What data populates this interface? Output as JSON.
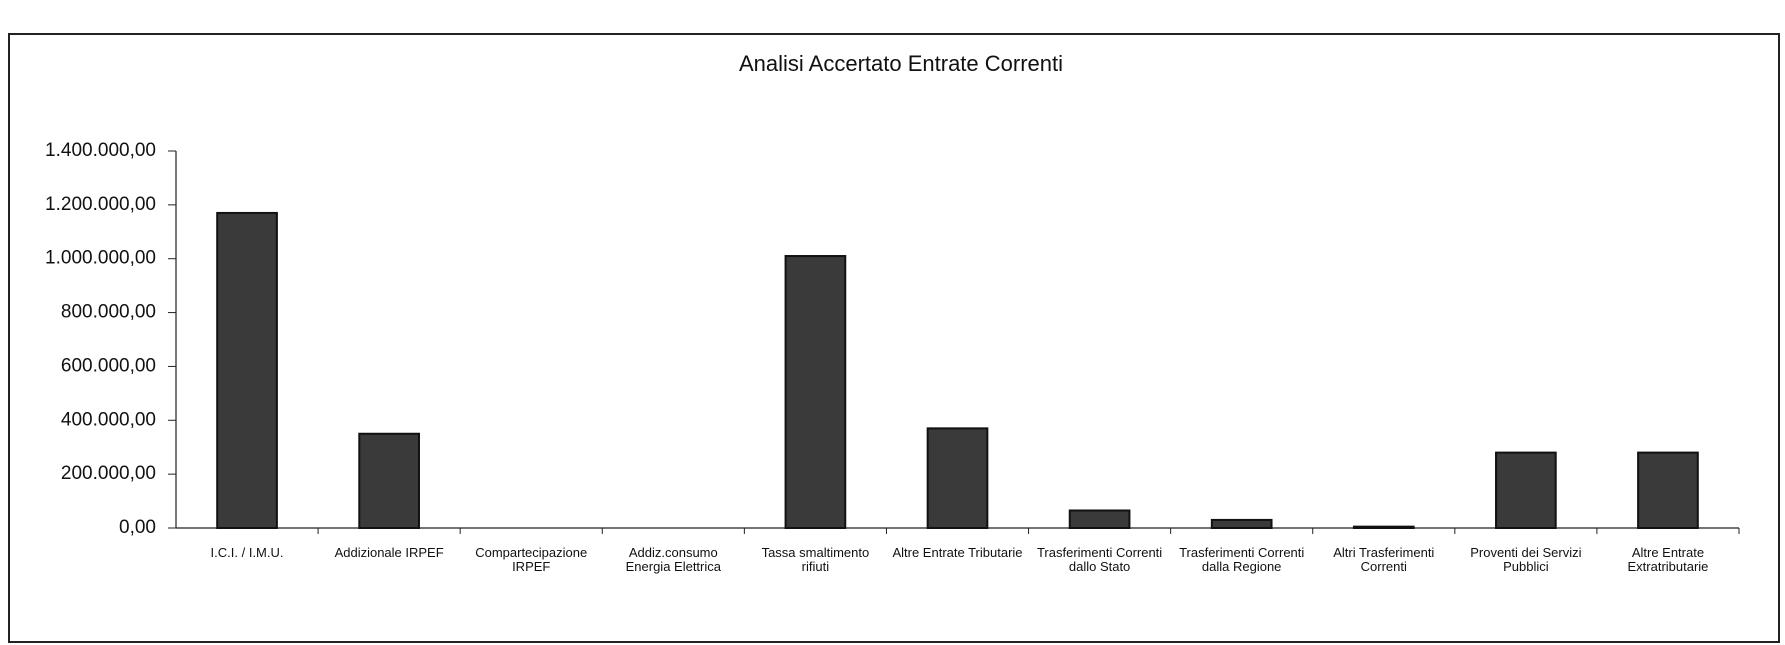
{
  "chart_data": {
    "type": "bar",
    "title": "Analisi Accertato Entrate Correnti",
    "categories": [
      "I.C.I. / I.M.U.",
      "Addizionale IRPEF",
      "Compartecipazione IRPEF",
      "Addiz.consumo Energia Elettrica",
      "Tassa smaltimento rifiuti",
      "Altre Entrate Tributarie",
      "Trasferimenti Correnti dallo Stato",
      "Trasferimenti Correnti dalla Regione",
      "Altri Trasferimenti Correnti",
      "Proventi dei Servizi Pubblici",
      "Altre Entrate Extratributarie"
    ],
    "values": [
      1170000,
      350000,
      0,
      0,
      1010000,
      370000,
      65000,
      30000,
      5000,
      280000,
      280000
    ],
    "color": "#3a3a3a",
    "ylim": [
      0,
      1400000
    ],
    "yticks": [
      {
        "value": 0,
        "label": "0,00"
      },
      {
        "value": 200000,
        "label": "200.000,00"
      },
      {
        "value": 400000,
        "label": "400.000,00"
      },
      {
        "value": 600000,
        "label": "600.000,00"
      },
      {
        "value": 800000,
        "label": "800.000,00"
      },
      {
        "value": 1000000,
        "label": "1.000.000,00"
      },
      {
        "value": 1200000,
        "label": "1.200.000,00"
      },
      {
        "value": 1400000,
        "label": "1.400.000,00"
      }
    ],
    "grid": false
  }
}
